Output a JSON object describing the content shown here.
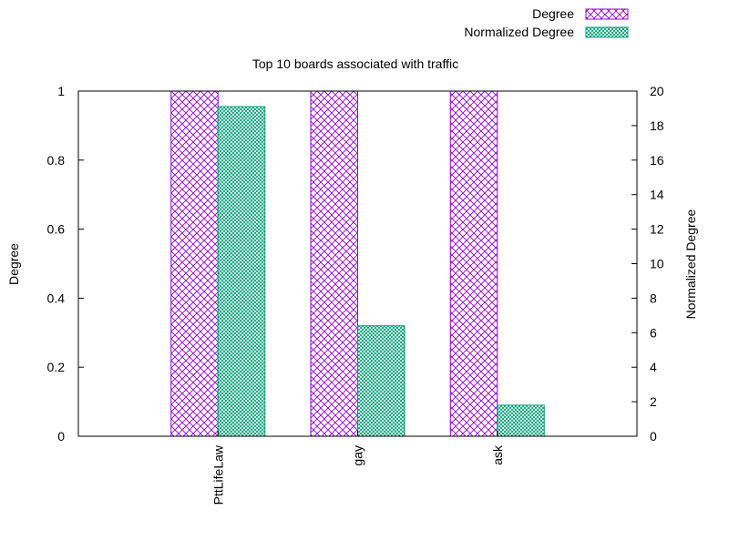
{
  "chart_data": {
    "type": "bar",
    "title": "Top 10 boards associated with traffic",
    "categories": [
      "PttLifeLaw",
      "gay",
      "ask"
    ],
    "series": [
      {
        "name": "Degree",
        "axis": "left",
        "values": [
          1,
          1,
          1
        ],
        "color": "#9400d3",
        "pattern": "crosshatch"
      },
      {
        "name": "Normalized Degree",
        "axis": "right",
        "values": [
          19.1,
          6.4,
          1.8
        ],
        "color": "#009e73",
        "pattern": "fine-crosshatch"
      }
    ],
    "ylabel": "Degree",
    "y2label": "Normalized Degree",
    "ylim": [
      0,
      1
    ],
    "y2lim": [
      0,
      20
    ],
    "yticks": [
      "0",
      "0.2",
      "0.4",
      "0.6",
      "0.8",
      "1"
    ],
    "y2ticks": [
      "0",
      "2",
      "4",
      "6",
      "8",
      "10",
      "12",
      "14",
      "16",
      "18",
      "20"
    ],
    "grid": false,
    "legend_position": "top-right"
  }
}
